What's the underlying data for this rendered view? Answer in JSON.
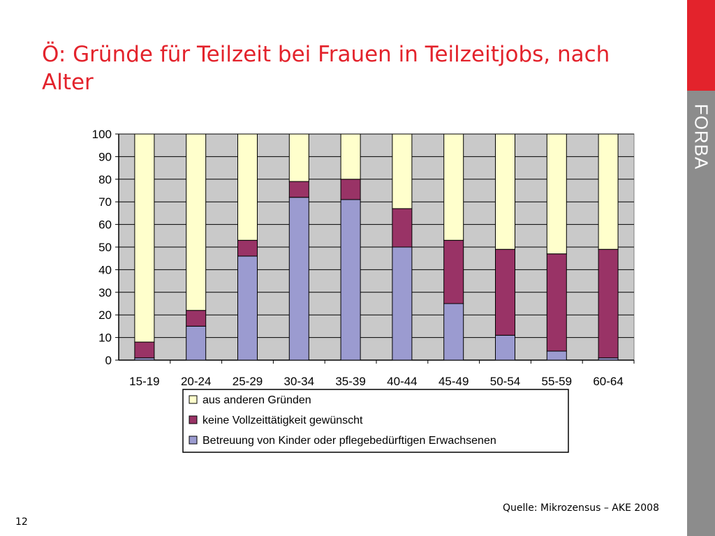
{
  "slide": {
    "title": "Ö: Gründe für Teilzeit bei Frauen in Teilzeitjobs, nach Alter",
    "source": "Quelle: Mikrozensus – AKE 2008",
    "page_number": "12",
    "logo": "FORBA"
  },
  "colors": {
    "accent_red": "#e3232c",
    "sidebar_gray": "#8c8c8c",
    "plot_bg": "#c9c9c9"
  },
  "chart_data": {
    "type": "bar",
    "stacked": true,
    "categories": [
      "15-19",
      "20-24",
      "25-29",
      "30-34",
      "35-39",
      "40-44",
      "45-49",
      "50-54",
      "55-59",
      "60-64"
    ],
    "series": [
      {
        "name": "Betreuung von Kinder oder pflegebedürftigen Erwachsenen",
        "color": "#9b9bd0",
        "values": [
          1,
          15,
          46,
          72,
          71,
          50,
          25,
          11,
          4,
          1
        ]
      },
      {
        "name": "keine Vollzeittätigkeit gewünscht",
        "color": "#993366",
        "values": [
          7,
          7,
          7,
          7,
          9,
          17,
          28,
          38,
          43,
          48
        ]
      },
      {
        "name": "aus anderen Gründen",
        "color": "#ffffcc",
        "values": [
          92,
          78,
          47,
          21,
          20,
          33,
          47,
          51,
          53,
          51
        ]
      }
    ],
    "legend_order": [
      2,
      1,
      0
    ],
    "ylim": [
      0,
      100
    ],
    "yticks": [
      0,
      10,
      20,
      30,
      40,
      50,
      60,
      70,
      80,
      90,
      100
    ],
    "grid": true,
    "legend_position": "bottom"
  }
}
